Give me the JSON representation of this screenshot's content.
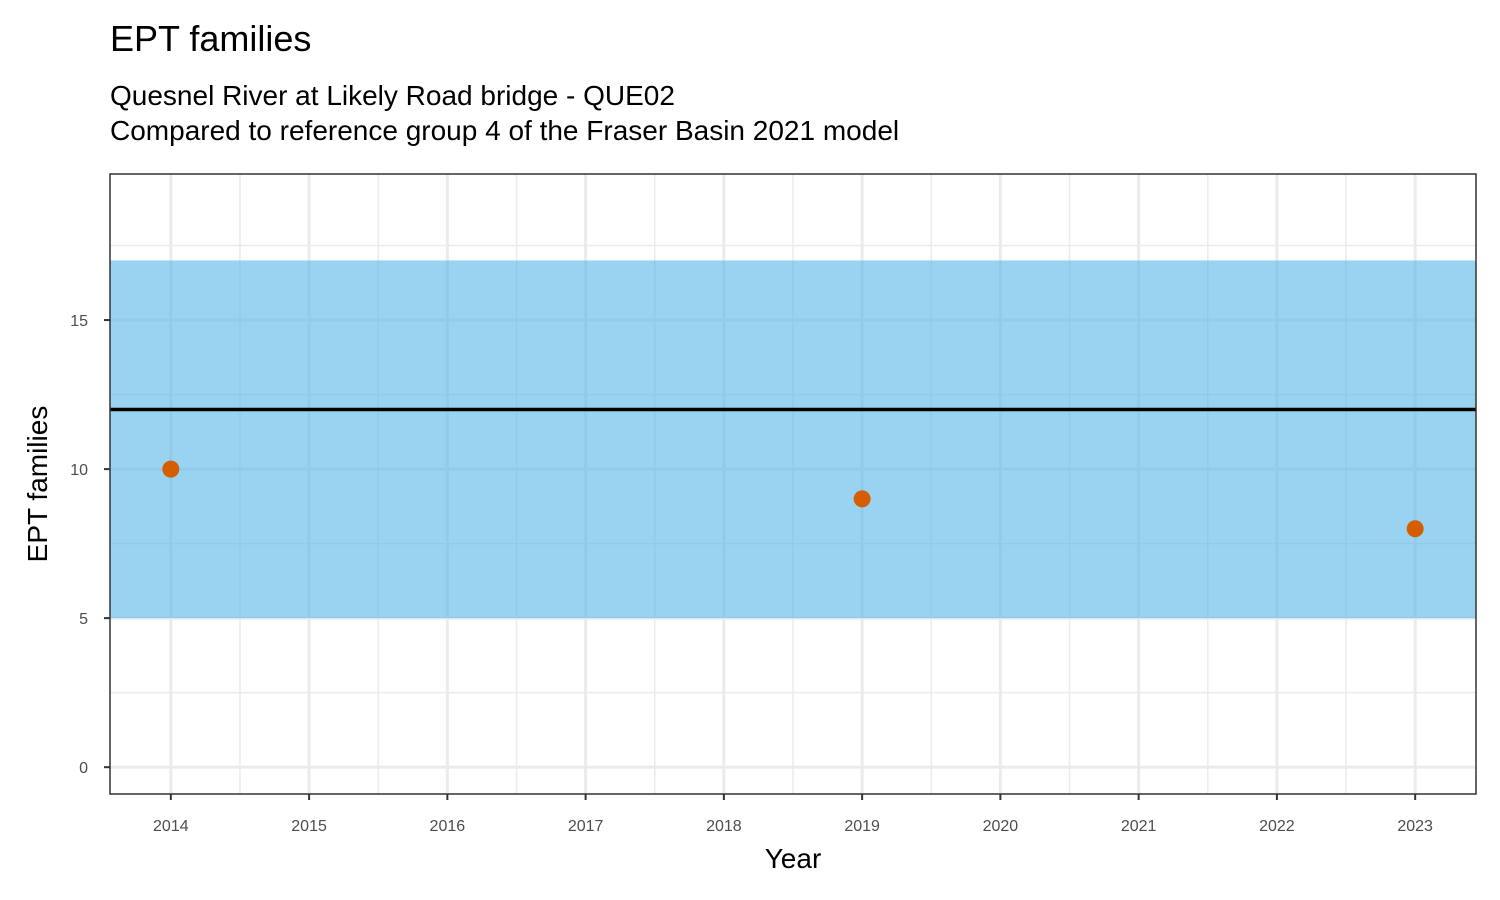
{
  "chart_data": {
    "type": "scatter",
    "title": "EPT families",
    "subtitle_lines": [
      "Quesnel River at Likely Road bridge - QUE02",
      "Compared to reference group 4 of the Fraser Basin 2021 model"
    ],
    "xlabel": "Year",
    "ylabel": "EPT families",
    "x_ticks": [
      "2014",
      "2015",
      "2016",
      "2017",
      "2018",
      "2019",
      "2020",
      "2021",
      "2022",
      "2023"
    ],
    "y_ticks": [
      "0",
      "5",
      "10",
      "15"
    ],
    "xlim": [
      2013.56,
      2023.44
    ],
    "ylim": [
      -0.9,
      19.9
    ],
    "points": [
      {
        "x": 2014,
        "y": 10
      },
      {
        "x": 2019,
        "y": 9
      },
      {
        "x": 2023,
        "y": 8
      }
    ],
    "reference_band": {
      "ymin": 5,
      "ymax": 17
    },
    "reference_line": {
      "y": 12
    },
    "grid": true,
    "colors": {
      "point": "#D55E00",
      "band": "#56B4E9",
      "reference_line": "#000000",
      "grid": "#ebebeb",
      "panel_border": "#333333"
    }
  }
}
